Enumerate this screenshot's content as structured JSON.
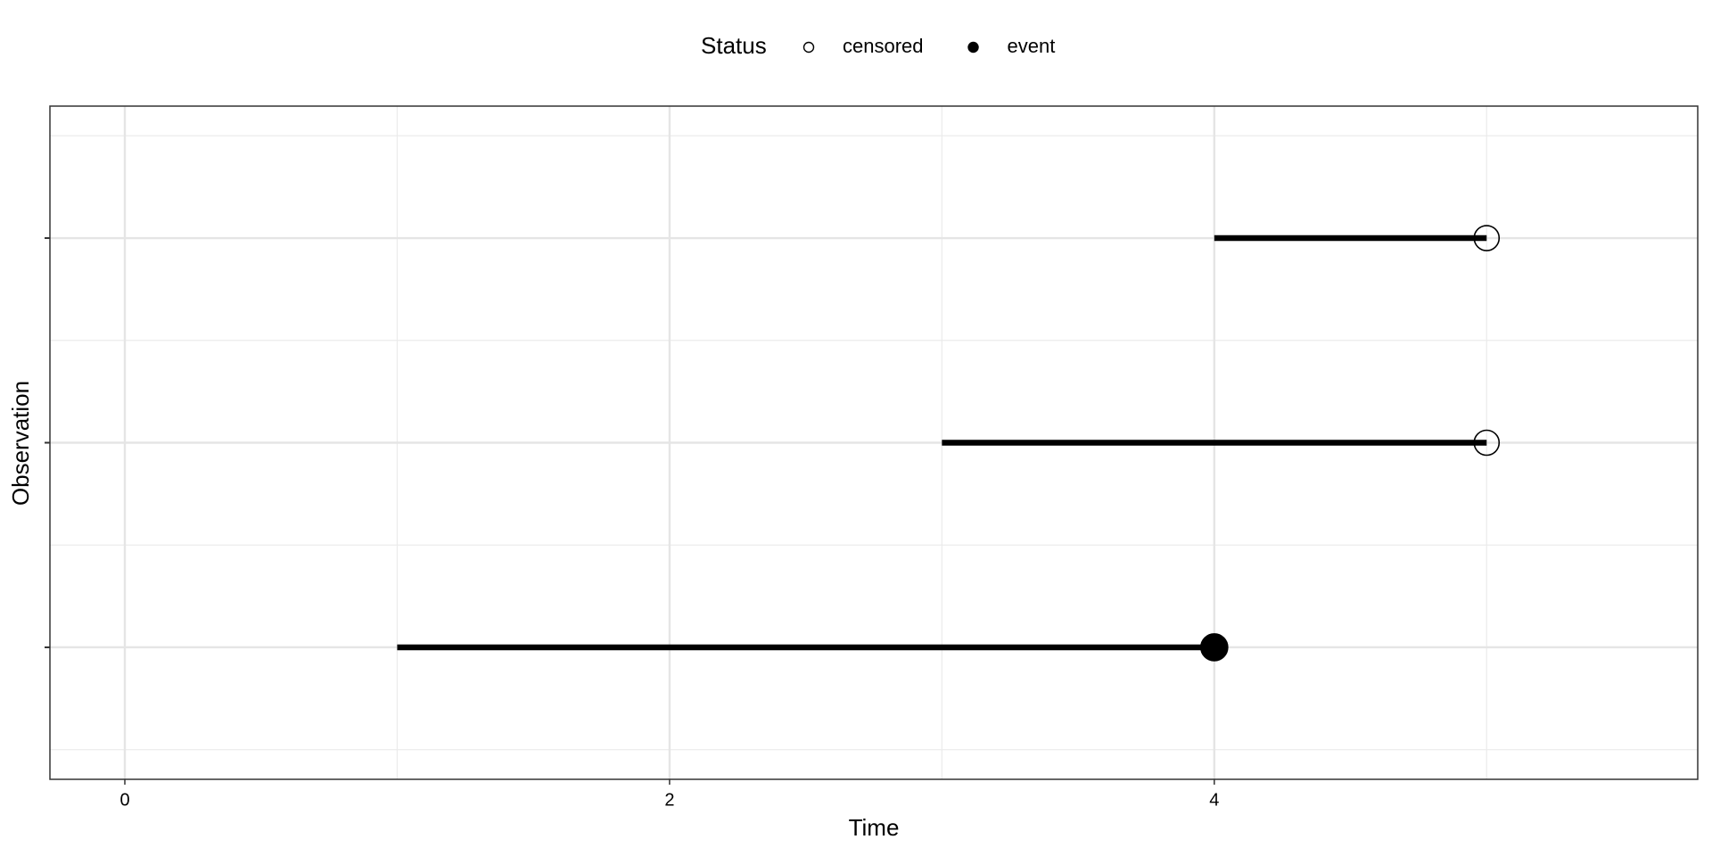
{
  "chart_data": {
    "type": "segment",
    "x_label": "Time",
    "y_label": "Observation",
    "legend_title": "Status",
    "series": [
      {
        "name": "censored",
        "color": "#000000",
        "filled": false,
        "y": [
          2,
          3
        ],
        "start": [
          3,
          4
        ],
        "end": [
          5,
          5
        ]
      },
      {
        "name": "event",
        "color": "#000000",
        "filled": true,
        "y": [
          1
        ],
        "start": [
          1
        ],
        "end": [
          4
        ]
      }
    ],
    "xlim": [
      -0.275,
      5.775
    ],
    "xticks": [
      0,
      2,
      4
    ],
    "xminor": [
      1,
      3,
      5
    ],
    "ylim": [
      0.355,
      3.645
    ],
    "yticks": [
      {
        "value": 1,
        "label": null
      },
      {
        "value": 2,
        "label": null
      },
      {
        "value": 3,
        "label": null
      }
    ],
    "yminor": [
      0.5,
      1.5,
      2.5,
      3.5
    ],
    "grid": true,
    "legend": "top"
  }
}
